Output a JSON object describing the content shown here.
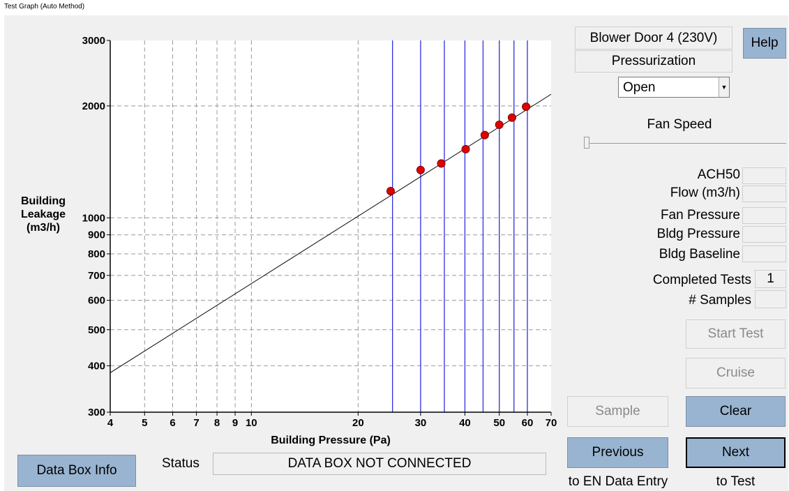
{
  "window": {
    "title": "Test Graph (Auto Method)"
  },
  "device": {
    "name": "Blower Door 4 (230V)",
    "mode": "Pressurization"
  },
  "help_button": {
    "label": "Help"
  },
  "ring_select": {
    "value": "Open"
  },
  "fan_speed": {
    "label": "Fan Speed",
    "level": 0
  },
  "readouts": [
    {
      "label": "ACH50",
      "value": ""
    },
    {
      "label": "Flow (m3/h)",
      "value": ""
    },
    {
      "label": "Fan Pressure",
      "value": ""
    },
    {
      "label": "Bldg Pressure",
      "value": ""
    },
    {
      "label": "Bldg Baseline",
      "value": ""
    }
  ],
  "completed_tests": {
    "label": "Completed Tests",
    "value": "1"
  },
  "samples": {
    "label": "# Samples",
    "value": ""
  },
  "buttons": {
    "start_test": "Start Test",
    "cruise": "Cruise",
    "sample": "Sample",
    "clear": "Clear",
    "previous": "Previous",
    "next": "Next",
    "data_box_info": "Data Box Info"
  },
  "captions": {
    "previous": "to EN Data Entry",
    "next": "to Test"
  },
  "status": {
    "label": "Status",
    "text": "DATA BOX NOT CONNECTED"
  },
  "colors": {
    "button_blue": "#99b4d1",
    "point_red": "#e00000",
    "blue_line": "#3030e0",
    "grid": "#999999"
  },
  "chart_data": {
    "type": "scatter",
    "xlabel": "Building Pressure (Pa)",
    "ylabel": "Building Leakage (m3/h)",
    "x_scale": "log",
    "y_scale": "log",
    "xlim": [
      4,
      70
    ],
    "ylim": [
      300,
      3000
    ],
    "x_ticks": [
      4,
      5,
      6,
      7,
      8,
      9,
      10,
      20,
      30,
      40,
      50,
      60,
      70
    ],
    "y_ticks": [
      300,
      400,
      500,
      600,
      700,
      800,
      900,
      1000,
      2000,
      3000
    ],
    "grid": true,
    "points": [
      {
        "x": 24.7,
        "y": 1180
      },
      {
        "x": 30.0,
        "y": 1345
      },
      {
        "x": 34.3,
        "y": 1400
      },
      {
        "x": 40.2,
        "y": 1530
      },
      {
        "x": 45.5,
        "y": 1670
      },
      {
        "x": 50.0,
        "y": 1780
      },
      {
        "x": 54.3,
        "y": 1860
      },
      {
        "x": 59.5,
        "y": 1990
      }
    ],
    "target_pressures": [
      25,
      30,
      35,
      40,
      45,
      50,
      55,
      60
    ],
    "fit_line": [
      {
        "x": 4,
        "y": 383
      },
      {
        "x": 70,
        "y": 2150
      }
    ]
  }
}
